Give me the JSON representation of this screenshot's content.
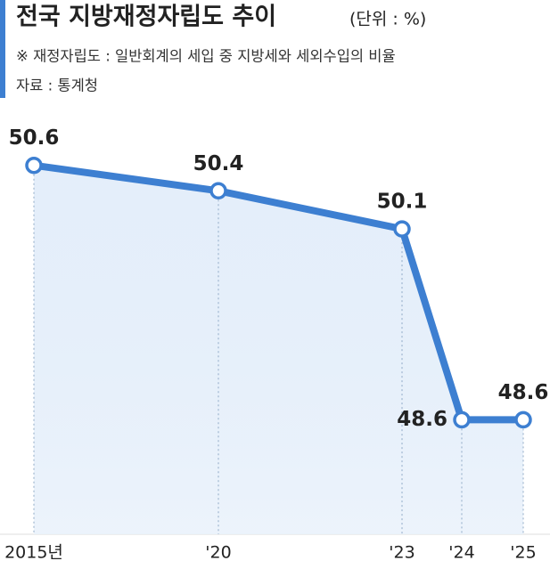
{
  "chart_data": {
    "type": "line",
    "title": "전국 지방재정자립도 추이",
    "unit": "(단위 : %)",
    "note": "※ 재정자립도 : 일반회계의 세입 중 지방세와 세외수입의 비율",
    "source": "자료 : 통계청",
    "categories": [
      "2015년",
      "'20",
      "'23",
      "'24",
      "'25"
    ],
    "values": [
      50.6,
      50.4,
      50.1,
      48.6,
      48.6
    ],
    "color": "#3d7fd1",
    "ylim": [
      47.7,
      51.9
    ]
  }
}
